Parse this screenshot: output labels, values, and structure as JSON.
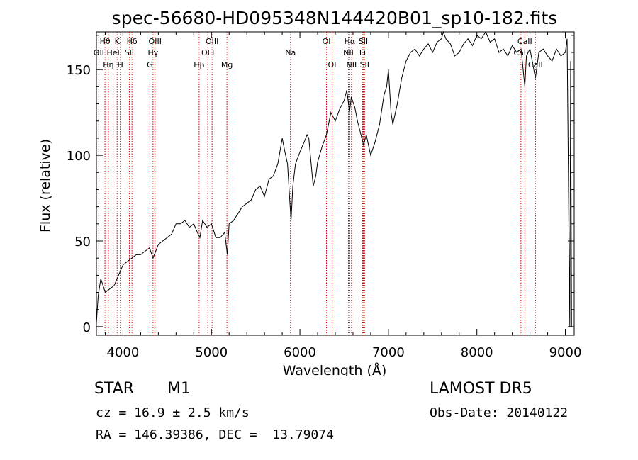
{
  "chart_data": {
    "type": "line",
    "title": "spec-56680-HD095348N144420B01_sp10-182.fits",
    "xlabel": "Wavelength (Å)",
    "ylabel": "Flux (relative)",
    "xlim": [
      3700,
      9100
    ],
    "ylim": [
      -5,
      172
    ],
    "x_ticks": [
      4000,
      5000,
      6000,
      7000,
      8000,
      9000
    ],
    "y_ticks": [
      0,
      50,
      100,
      150
    ],
    "grid": false,
    "series": [
      {
        "color": "#000000",
        "x": [
          3700,
          3720,
          3750,
          3800,
          3850,
          3900,
          3950,
          4000,
          4050,
          4100,
          4150,
          4200,
          4250,
          4300,
          4340,
          4400,
          4450,
          4500,
          4550,
          4600,
          4650,
          4700,
          4750,
          4800,
          4850,
          4870,
          4900,
          4950,
          5000,
          5050,
          5100,
          5150,
          5180,
          5200,
          5250,
          5300,
          5350,
          5400,
          5450,
          5500,
          5550,
          5600,
          5650,
          5700,
          5750,
          5800,
          5830,
          5860,
          5890,
          5900,
          5920,
          5950,
          6000,
          6050,
          6080,
          6100,
          6150,
          6180,
          6200,
          6250,
          6300,
          6350,
          6400,
          6450,
          6500,
          6530,
          6550,
          6563,
          6580,
          6620,
          6650,
          6700,
          6720,
          6750,
          6800,
          6850,
          6900,
          6950,
          6980,
          7000,
          7030,
          7050,
          7100,
          7150,
          7200,
          7250,
          7300,
          7350,
          7400,
          7450,
          7500,
          7550,
          7600,
          7620,
          7650,
          7700,
          7750,
          7800,
          7850,
          7900,
          7950,
          8000,
          8050,
          8100,
          8150,
          8200,
          8250,
          8300,
          8350,
          8400,
          8450,
          8500,
          8542,
          8560,
          8600,
          8662,
          8700,
          8750,
          8800,
          8850,
          8900,
          8950,
          9000,
          9020,
          9050,
          9060,
          9070
        ],
        "y": [
          2,
          18,
          28,
          20,
          22,
          24,
          30,
          36,
          38,
          40,
          42,
          42,
          44,
          46,
          40,
          48,
          50,
          52,
          54,
          60,
          60,
          62,
          58,
          60,
          54,
          52,
          62,
          58,
          60,
          52,
          52,
          55,
          42,
          60,
          62,
          66,
          70,
          72,
          74,
          80,
          82,
          76,
          86,
          88,
          95,
          110,
          102,
          95,
          70,
          62,
          82,
          95,
          102,
          108,
          112,
          110,
          82,
          88,
          96,
          105,
          112,
          125,
          120,
          127,
          132,
          138,
          130,
          126,
          134,
          128,
          120,
          110,
          106,
          112,
          100,
          108,
          118,
          135,
          140,
          150,
          125,
          118,
          130,
          145,
          155,
          160,
          162,
          158,
          162,
          165,
          160,
          166,
          168,
          172,
          168,
          165,
          158,
          160,
          165,
          168,
          164,
          170,
          168,
          172,
          166,
          168,
          160,
          162,
          158,
          164,
          160,
          162,
          140,
          158,
          162,
          145,
          160,
          162,
          158,
          155,
          162,
          158,
          160,
          168,
          0,
          155,
          0
        ]
      }
    ],
    "lines": [
      {
        "wave": 3727,
        "label": "OII",
        "tier": "mid"
      },
      {
        "wave": 3797,
        "label": "Hθ",
        "tier": "top"
      },
      {
        "wave": 3835,
        "label": "Hη",
        "tier": "low"
      },
      {
        "wave": 3889,
        "label": "HeI",
        "tier": "mid"
      },
      {
        "wave": 3934,
        "label": "K",
        "tier": "top"
      },
      {
        "wave": 3970,
        "label": "H",
        "tier": "low"
      },
      {
        "wave": 4072,
        "label": "SII",
        "tier": "mid"
      },
      {
        "wave": 4102,
        "label": "Hδ",
        "tier": "top"
      },
      {
        "wave": 4304,
        "label": "G",
        "tier": "low"
      },
      {
        "wave": 4340,
        "label": "Hγ",
        "tier": "mid"
      },
      {
        "wave": 4363,
        "label": "OIII",
        "tier": "top"
      },
      {
        "wave": 4861,
        "label": "Hβ",
        "tier": "low"
      },
      {
        "wave": 4959,
        "label": "OIII",
        "tier": "mid"
      },
      {
        "wave": 5007,
        "label": "OIII",
        "tier": "top"
      },
      {
        "wave": 5175,
        "label": "Mg",
        "tier": "low"
      },
      {
        "wave": 5893,
        "label": "Na",
        "tier": "mid"
      },
      {
        "wave": 6300,
        "label": "OI",
        "tier": "top"
      },
      {
        "wave": 6364,
        "label": "OI",
        "tier": "low"
      },
      {
        "wave": 6548,
        "label": "NII",
        "tier": "mid"
      },
      {
        "wave": 6563,
        "label": "Hα",
        "tier": "top"
      },
      {
        "wave": 6583,
        "label": "NII",
        "tier": "low"
      },
      {
        "wave": 6708,
        "label": "Li",
        "tier": "mid"
      },
      {
        "wave": 6716,
        "label": "SII",
        "tier": "top"
      },
      {
        "wave": 6731,
        "label": "SII",
        "tier": "low"
      },
      {
        "wave": 8498,
        "label": "CaII",
        "tier": "mid"
      },
      {
        "wave": 8542,
        "label": "CaII",
        "tier": "top"
      },
      {
        "wave": 8662,
        "label": "CaII",
        "tier": "low"
      }
    ]
  },
  "info": {
    "object_class": "STAR",
    "subclass": "M1",
    "cz": "cz = 16.9 ± 2.5 km/s",
    "radec": "RA = 146.39386, DEC =  13.79074",
    "survey": "LAMOST DR5",
    "obs_date": "Obs-Date: 20140122"
  },
  "colors": {
    "spectrum": "#000000",
    "line_markers": "#cc0000",
    "axes": "#000000"
  }
}
